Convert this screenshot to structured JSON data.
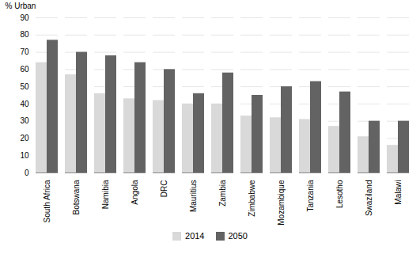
{
  "chart_data": {
    "type": "bar",
    "categories": [
      "South Africa",
      "Botswana",
      "Namibia",
      "Angola",
      "DRC",
      "Mauritius",
      "Zambia",
      "Zimbabwe",
      "Mozambique",
      "Tanzania",
      "Lesotho",
      "Swaziland",
      "Malawi"
    ],
    "series": [
      {
        "name": "2014",
        "color": "#d9d9d9",
        "values": [
          64,
          57,
          46,
          43,
          42,
          40,
          40,
          33,
          32,
          31,
          27,
          21,
          16
        ]
      },
      {
        "name": "2050",
        "color": "#636363",
        "values": [
          77,
          70,
          68,
          64,
          60,
          46,
          58,
          45,
          50,
          53,
          47,
          30,
          30
        ]
      }
    ],
    "ylabel": "% Urban",
    "ylim": [
      0,
      90
    ],
    "yticks": [
      0,
      10,
      20,
      30,
      40,
      50,
      60,
      70,
      80,
      90
    ],
    "grid": true,
    "legend": "bottom"
  }
}
